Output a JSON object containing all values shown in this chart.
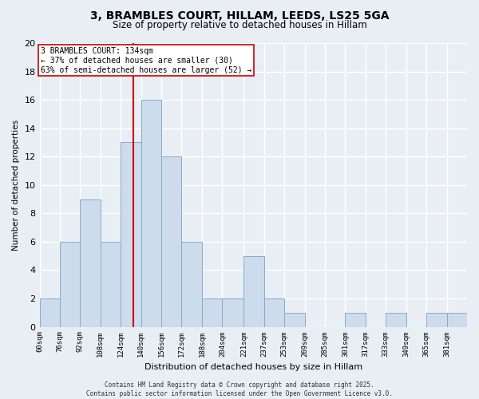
{
  "title": "3, BRAMBLES COURT, HILLAM, LEEDS, LS25 5GA",
  "subtitle": "Size of property relative to detached houses in Hillam",
  "xlabel": "Distribution of detached houses by size in Hillam",
  "ylabel": "Number of detached properties",
  "bin_labels": [
    "60sqm",
    "76sqm",
    "92sqm",
    "108sqm",
    "124sqm",
    "140sqm",
    "156sqm",
    "172sqm",
    "188sqm",
    "204sqm",
    "221sqm",
    "237sqm",
    "253sqm",
    "269sqm",
    "285sqm",
    "301sqm",
    "317sqm",
    "333sqm",
    "349sqm",
    "365sqm",
    "381sqm"
  ],
  "bin_edges": [
    60,
    76,
    92,
    108,
    124,
    140,
    156,
    172,
    188,
    204,
    221,
    237,
    253,
    269,
    285,
    301,
    317,
    333,
    349,
    365,
    381,
    397
  ],
  "counts": [
    2,
    6,
    9,
    6,
    13,
    16,
    12,
    6,
    2,
    2,
    5,
    2,
    1,
    0,
    0,
    1,
    0,
    1,
    0,
    1,
    1
  ],
  "property_value": 134,
  "bar_color": "#ccdcec",
  "bar_edgecolor": "#88aac8",
  "vline_color": "#cc0000",
  "vline_x": 134,
  "annotation_title": "3 BRAMBLES COURT: 134sqm",
  "annotation_line1": "← 37% of detached houses are smaller (30)",
  "annotation_line2": "63% of semi-detached houses are larger (52) →",
  "ylim": [
    0,
    20
  ],
  "yticks": [
    0,
    2,
    4,
    6,
    8,
    10,
    12,
    14,
    16,
    18,
    20
  ],
  "background_color": "#e8eef4",
  "plot_background": "#e8eef4",
  "grid_color": "#ffffff",
  "footer_line1": "Contains HM Land Registry data © Crown copyright and database right 2025.",
  "footer_line2": "Contains public sector information licensed under the Open Government Licence v3.0."
}
